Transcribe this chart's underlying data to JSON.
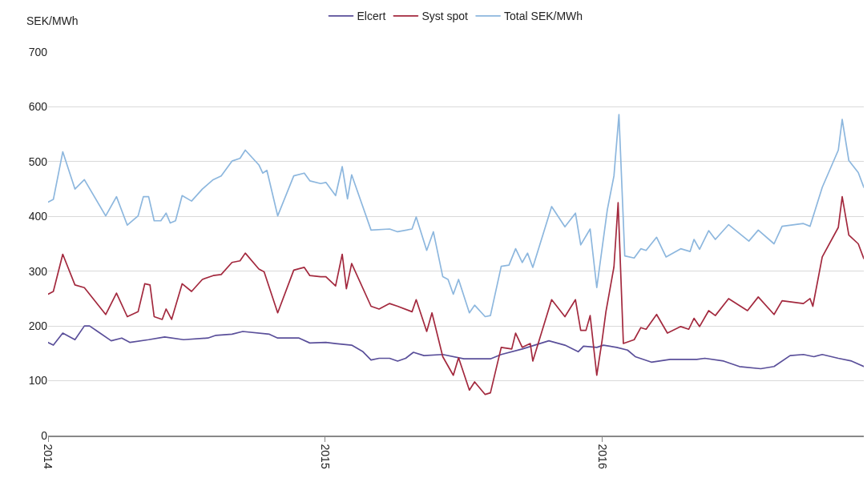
{
  "chart_data": {
    "type": "line",
    "ylabel": "SEK/MWh",
    "xlim": [
      2014,
      2016.945
    ],
    "xticks": [
      2014,
      2015,
      2016
    ],
    "ylim": [
      0,
      700
    ],
    "yticks": [
      0,
      100,
      200,
      300,
      400,
      500,
      600,
      700
    ],
    "grid": "y",
    "legend": "top",
    "marker": "none",
    "line_style": "solid",
    "series": [
      {
        "name": "Elcert",
        "color": "#5a4f9a",
        "x": [
          2014.0,
          2014.019,
          2014.053,
          2014.097,
          2014.131,
          2014.15,
          2014.179,
          2014.228,
          2014.266,
          2014.296,
          2014.363,
          2014.421,
          2014.489,
          2014.577,
          2014.606,
          2014.664,
          2014.703,
          2014.799,
          2014.829,
          2014.906,
          2014.945,
          2015.003,
          2015.038,
          2015.096,
          2015.137,
          2015.166,
          2015.195,
          2015.233,
          2015.262,
          2015.291,
          2015.319,
          2015.357,
          2015.425,
          2015.501,
          2015.597,
          2015.636,
          2015.712,
          2015.808,
          2015.866,
          2015.914,
          2015.933,
          2015.981,
          2016.005,
          2016.053,
          2016.092,
          2016.12,
          2016.178,
          2016.246,
          2016.342,
          2016.371,
          2016.439,
          2016.496,
          2016.573,
          2016.621,
          2016.679,
          2016.727,
          2016.765,
          2016.795,
          2016.853,
          2016.901,
          2016.945
        ],
        "values": [
          170,
          165,
          187,
          175,
          200,
          200,
          190,
          173,
          178,
          170,
          175,
          180,
          175,
          178,
          183,
          185,
          190,
          185,
          178,
          178,
          169,
          170,
          168,
          165,
          153,
          138,
          141,
          141,
          136,
          141,
          152,
          146,
          148,
          140,
          140,
          148,
          158,
          173,
          165,
          153,
          163,
          161,
          165,
          161,
          156,
          144,
          134,
          139,
          139,
          141,
          136,
          126,
          122,
          126,
          146,
          148,
          144,
          148,
          141,
          136,
          126
        ]
      },
      {
        "name": "Syst spot",
        "color": "#a3293e",
        "x": [
          2014.0,
          2014.019,
          2014.053,
          2014.097,
          2014.131,
          2014.208,
          2014.247,
          2014.286,
          2014.325,
          2014.349,
          2014.368,
          2014.383,
          2014.412,
          2014.426,
          2014.446,
          2014.484,
          2014.518,
          2014.557,
          2014.596,
          2014.625,
          2014.664,
          2014.693,
          2014.712,
          2014.761,
          2014.78,
          2014.829,
          2014.887,
          2014.925,
          2014.945,
          2014.984,
          2015.003,
          2015.038,
          2015.062,
          2015.077,
          2015.096,
          2015.166,
          2015.195,
          2015.233,
          2015.262,
          2015.314,
          2015.329,
          2015.367,
          2015.386,
          2015.425,
          2015.463,
          2015.482,
          2015.521,
          2015.54,
          2015.578,
          2015.597,
          2015.636,
          2015.674,
          2015.688,
          2015.712,
          2015.741,
          2015.75,
          2015.818,
          2015.866,
          2015.904,
          2015.923,
          2015.942,
          2015.957,
          2015.981,
          2016.0,
          2016.014,
          2016.043,
          2016.058,
          2016.077,
          2016.116,
          2016.14,
          2016.159,
          2016.197,
          2016.236,
          2016.284,
          2016.313,
          2016.332,
          2016.352,
          2016.385,
          2016.409,
          2016.457,
          2016.525,
          2016.564,
          2016.621,
          2016.65,
          2016.727,
          2016.751,
          2016.761,
          2016.795,
          2016.853,
          2016.867,
          2016.891,
          2016.925,
          2016.945
        ],
        "values": [
          258,
          263,
          331,
          275,
          270,
          221,
          260,
          217,
          226,
          277,
          275,
          217,
          212,
          231,
          212,
          277,
          263,
          285,
          292,
          294,
          316,
          319,
          333,
          304,
          299,
          224,
          302,
          307,
          292,
          290,
          290,
          273,
          331,
          268,
          314,
          236,
          231,
          241,
          236,
          226,
          248,
          190,
          224,
          144,
          110,
          142,
          83,
          98,
          75,
          78,
          161,
          158,
          187,
          161,
          168,
          136,
          248,
          217,
          248,
          192,
          192,
          219,
          110,
          173,
          226,
          308,
          425,
          168,
          175,
          197,
          194,
          221,
          187,
          199,
          194,
          214,
          199,
          228,
          219,
          250,
          228,
          253,
          221,
          246,
          241,
          250,
          236,
          326,
          380,
          436,
          366,
          350,
          323
        ]
      },
      {
        "name": "Total SEK/MWh",
        "color": "#8db7de",
        "x": [
          2014.0,
          2014.019,
          2014.053,
          2014.097,
          2014.131,
          2014.208,
          2014.247,
          2014.286,
          2014.325,
          2014.344,
          2014.363,
          2014.383,
          2014.407,
          2014.426,
          2014.441,
          2014.46,
          2014.484,
          2014.518,
          2014.557,
          2014.596,
          2014.625,
          2014.664,
          2014.693,
          2014.712,
          2014.761,
          2014.775,
          2014.79,
          2014.829,
          2014.887,
          2014.925,
          2014.945,
          2014.984,
          2015.003,
          2015.038,
          2015.062,
          2015.081,
          2015.096,
          2015.166,
          2015.233,
          2015.262,
          2015.314,
          2015.329,
          2015.367,
          2015.391,
          2015.425,
          2015.444,
          2015.463,
          2015.482,
          2015.521,
          2015.54,
          2015.578,
          2015.597,
          2015.636,
          2015.664,
          2015.688,
          2015.712,
          2015.731,
          2015.75,
          2015.818,
          2015.866,
          2015.904,
          2015.923,
          2015.957,
          2015.981,
          2016.019,
          2016.043,
          2016.061,
          2016.082,
          2016.116,
          2016.14,
          2016.159,
          2016.197,
          2016.231,
          2016.284,
          2016.318,
          2016.332,
          2016.352,
          2016.385,
          2016.409,
          2016.457,
          2016.53,
          2016.564,
          2016.621,
          2016.65,
          2016.727,
          2016.751,
          2016.795,
          2016.853,
          2016.867,
          2016.891,
          2016.925,
          2016.945
        ],
        "values": [
          426,
          431,
          518,
          450,
          467,
          401,
          436,
          384,
          401,
          436,
          436,
          392,
          392,
          406,
          388,
          392,
          438,
          428,
          450,
          467,
          474,
          501,
          506,
          521,
          494,
          479,
          484,
          401,
          474,
          479,
          465,
          460,
          462,
          438,
          491,
          432,
          476,
          375,
          377,
          372,
          377,
          399,
          338,
          372,
          290,
          285,
          258,
          285,
          224,
          238,
          217,
          219,
          309,
          311,
          341,
          316,
          333,
          307,
          418,
          381,
          406,
          348,
          377,
          270,
          412,
          474,
          586,
          328,
          324,
          341,
          338,
          362,
          326,
          341,
          336,
          358,
          340,
          374,
          358,
          385,
          355,
          375,
          350,
          382,
          387,
          382,
          453,
          521,
          577,
          502,
          480,
          453
        ]
      }
    ]
  }
}
